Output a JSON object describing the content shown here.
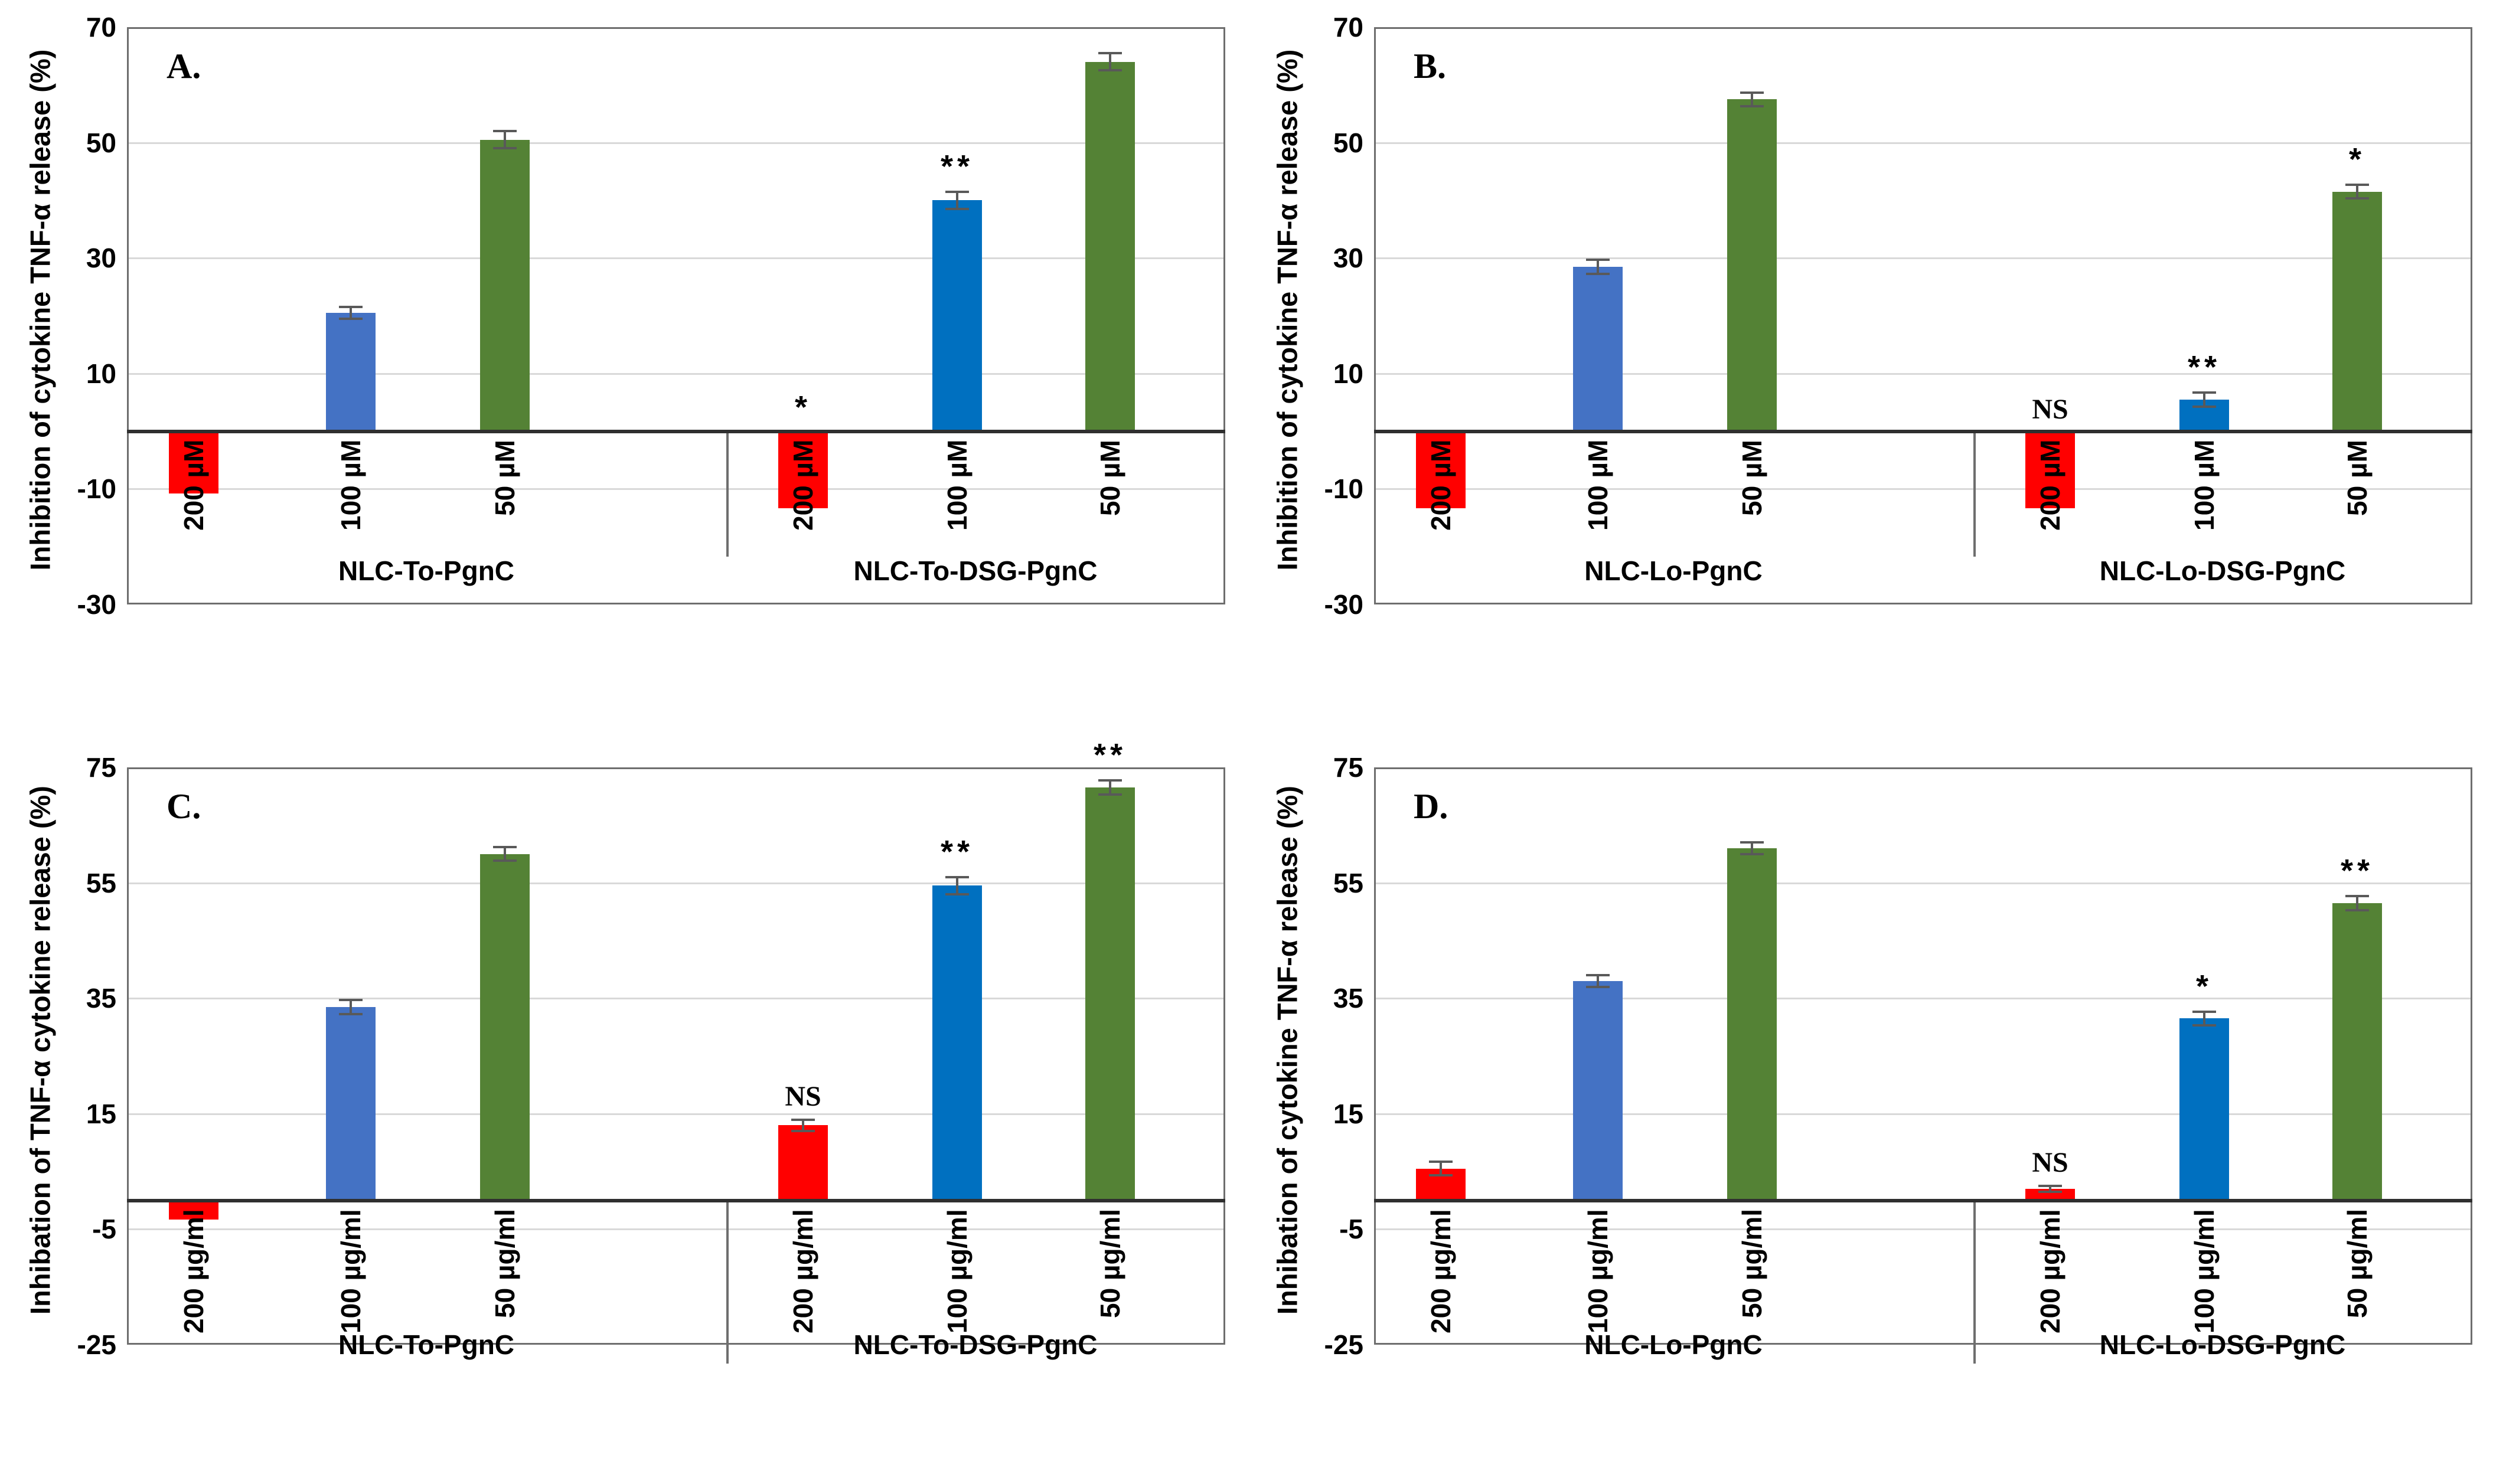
{
  "colors": {
    "red": "#ff0000",
    "blue_light": "#4472c4",
    "blue_dark": "#0070c0",
    "green": "#548235",
    "error_bar": "#595959",
    "gridline": "#d9d9d9",
    "zero_axis": "#2f2f2f",
    "plot_border": "#6e6e6e"
  },
  "chart_data": [
    {
      "type": "bar",
      "panel_label": "A.",
      "ylabel": "Inhibition of cytokine  TNF-α release (%)",
      "ylim": [
        -30,
        70
      ],
      "yticks": [
        70,
        50,
        30,
        10,
        -10,
        -30
      ],
      "grid": true,
      "group_labels_on_border": false,
      "groups": [
        {
          "label": "NLC-To-PgnC",
          "bars": [
            {
              "label": "200 µM",
              "value": -10.5,
              "err": 0,
              "color": "red",
              "annotation": ""
            },
            {
              "label": "100 µM",
              "value": 20.5,
              "err": 1,
              "color": "blue_light",
              "annotation": ""
            },
            {
              "label": "50 µM",
              "value": 50.5,
              "err": 1.5,
              "color": "green",
              "annotation": ""
            }
          ]
        },
        {
          "label": "NLC-To-DSG-PgnC",
          "bars": [
            {
              "label": "200 µM",
              "value": -13,
              "err": 0,
              "color": "red",
              "annotation": "*"
            },
            {
              "label": "100 µM",
              "value": 40,
              "err": 1.5,
              "color": "blue_dark",
              "annotation": "**"
            },
            {
              "label": "50 µM",
              "value": 64,
              "err": 1.5,
              "color": "green",
              "annotation": ""
            }
          ]
        }
      ]
    },
    {
      "type": "bar",
      "panel_label": "B.",
      "ylabel": "Inhibition of cytokine TNF-α release (%)",
      "ylim": [
        -30,
        70
      ],
      "yticks": [
        70,
        50,
        30,
        10,
        -10,
        -30
      ],
      "grid": true,
      "group_labels_on_border": false,
      "groups": [
        {
          "label": "NLC-Lo-PgnC",
          "bars": [
            {
              "label": "200 µM",
              "value": -13,
              "err": 0,
              "color": "red",
              "annotation": ""
            },
            {
              "label": "100 µM",
              "value": 28.5,
              "err": 1.2,
              "color": "blue_light",
              "annotation": ""
            },
            {
              "label": "50 µM",
              "value": 57.5,
              "err": 1.2,
              "color": "green",
              "annotation": ""
            }
          ]
        },
        {
          "label": "NLC-Lo-DSG-PgnC",
          "bars": [
            {
              "label": "200 µM",
              "value": -13,
              "err": 0,
              "color": "red",
              "annotation": "NS"
            },
            {
              "label": "100 µM",
              "value": 5.5,
              "err": 1.2,
              "color": "blue_dark",
              "annotation": "**"
            },
            {
              "label": "50 µM",
              "value": 41.5,
              "err": 1.2,
              "color": "green",
              "annotation": "*"
            }
          ]
        }
      ]
    },
    {
      "type": "bar",
      "panel_label": "C.",
      "ylabel": "Inhibation of TNF-α cytokine release (%)",
      "ylim": [
        -25,
        75
      ],
      "yticks": [
        75,
        55,
        35,
        15,
        -5,
        -25
      ],
      "grid": true,
      "group_labels_on_border": true,
      "groups": [
        {
          "label": "NLC-To-PgnC",
          "bars": [
            {
              "label": "200 µg/ml",
              "value": -3,
              "err": 0,
              "color": "red",
              "annotation": ""
            },
            {
              "label": "100 µg/ml",
              "value": 33.5,
              "err": 1.2,
              "color": "blue_light",
              "annotation": ""
            },
            {
              "label": "50 µg/ml",
              "value": 60,
              "err": 1.2,
              "color": "green",
              "annotation": ""
            }
          ]
        },
        {
          "label": "NLC-To-DSG-PgnC",
          "bars": [
            {
              "label": "200 µg/ml",
              "value": 13,
              "err": 1,
              "color": "red",
              "annotation": "NS"
            },
            {
              "label": "100 µg/ml",
              "value": 54.5,
              "err": 1.5,
              "color": "blue_dark",
              "annotation": "**"
            },
            {
              "label": "50 µg/ml",
              "value": 71.5,
              "err": 1.2,
              "color": "green",
              "annotation": "**"
            }
          ]
        }
      ]
    },
    {
      "type": "bar",
      "panel_label": "D.",
      "ylabel": "Inhibation of cytokine  TNF-α release (%)",
      "ylim": [
        -25,
        75
      ],
      "yticks": [
        75,
        55,
        35,
        15,
        -5,
        -25
      ],
      "grid": true,
      "group_labels_on_border": true,
      "groups": [
        {
          "label": "NLC-Lo-PgnC",
          "bars": [
            {
              "label": "200 µg/ml",
              "value": 5.5,
              "err": 1.2,
              "color": "red",
              "annotation": ""
            },
            {
              "label": "100 µg/ml",
              "value": 38,
              "err": 1,
              "color": "blue_light",
              "annotation": ""
            },
            {
              "label": "50 µg/ml",
              "value": 61,
              "err": 1,
              "color": "green",
              "annotation": ""
            }
          ]
        },
        {
          "label": "NLC-Lo-DSG-PgnC",
          "bars": [
            {
              "label": "200 µg/ml",
              "value": 2,
              "err": 0.5,
              "color": "red",
              "annotation": "NS"
            },
            {
              "label": "100 µg/ml",
              "value": 31.5,
              "err": 1.2,
              "color": "blue_dark",
              "annotation": "*"
            },
            {
              "label": "50 µg/ml",
              "value": 51.5,
              "err": 1.2,
              "color": "green",
              "annotation": "**"
            }
          ]
        }
      ]
    }
  ]
}
